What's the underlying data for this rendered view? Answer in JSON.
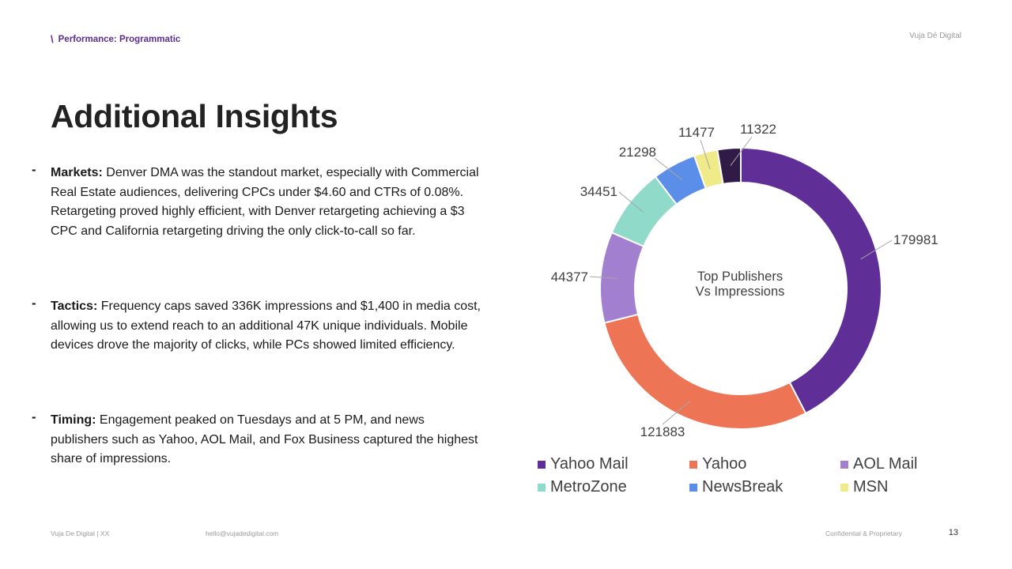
{
  "header": {
    "section": "Performance: Programmatic",
    "brand": "Vuja Dé Digital"
  },
  "title": "Additional Insights",
  "bullets": [
    {
      "label": "Markets:",
      "text": " Denver DMA was the standout market, especially with Commercial Real Estate audiences, delivering CPCs under $4.60 and CTRs of 0.08%. Retargeting proved highly efficient, with Denver retargeting achieving a $3 CPC and California retargeting driving the only click-to-call so far."
    },
    {
      "label": "Tactics:",
      "text": " Frequency caps saved 336K impressions and $1,400 in media cost, allowing us to extend reach to an additional 47K unique individuals. Mobile devices drove the majority of clicks, while PCs showed limited efficiency."
    },
    {
      "label": "Timing:",
      "text": " Engagement peaked on Tuesdays and at 5 PM, and news publishers such as Yahoo, AOL Mail, and Fox Business captured the highest share of impressions."
    }
  ],
  "footer": {
    "left": "Vuja De Digital  |  XX",
    "email": "hello@vujadedigital.com",
    "confidential": "Confidential & Proprietary",
    "page_number": "13"
  },
  "chart_data": {
    "type": "pie",
    "variant": "donut",
    "title": "Top Publishers Vs Impressions",
    "title_lines": [
      "Top Publishers",
      "Vs Impressions"
    ],
    "slices": [
      {
        "name": "Yahoo Mail",
        "value": 179981,
        "color": "#5f2f97",
        "in_legend": true
      },
      {
        "name": "Yahoo",
        "value": 121883,
        "color": "#ed7455",
        "in_legend": true
      },
      {
        "name": "AOL Mail",
        "value": 44377,
        "color": "#a37fd0",
        "in_legend": true
      },
      {
        "name": "MetroZone",
        "value": 34451,
        "color": "#8fdac9",
        "in_legend": true
      },
      {
        "name": "NewsBreak",
        "value": 21298,
        "color": "#5b8ee8",
        "in_legend": true
      },
      {
        "name": "MSN",
        "value": 11477,
        "color": "#f0ea8a",
        "in_legend": true
      },
      {
        "name": "",
        "value": 11322,
        "color": "#2f1b45",
        "in_legend": false
      }
    ],
    "legend_position": "bottom"
  }
}
